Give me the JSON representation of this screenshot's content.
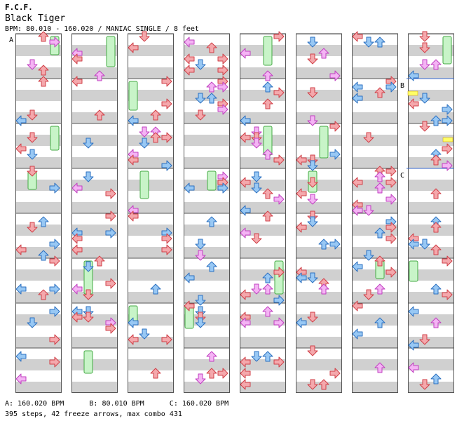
{
  "header": {
    "group": "F.C.F.",
    "song": "Black Tiger",
    "info": "BPM: 80.010 - 160.020 / MANIAC SINGLE / 8 feet"
  },
  "markers": {
    "a": "A",
    "b": "B",
    "c": "C"
  },
  "footer": {
    "bpm_changes": "A: 160.020 BPM      B: 80.010 BPM      C: 160.020 BPM",
    "stats": "395 steps, 42 freeze arrows, max combo 431"
  },
  "colors": {
    "quarter_note": "#f4a4a8",
    "eighth_note": "#90c4f4",
    "sixteenth_note": "#f4b0f4",
    "freeze": "#c8f4c8",
    "freeze_border": "#44aa44",
    "measure_stripe": "#d0d0d0",
    "gap_marker": "#ffff66"
  },
  "icons": {
    "left": "left-arrow-icon",
    "down": "down-arrow-icon",
    "up": "up-arrow-icon",
    "right": "right-arrow-icon"
  }
}
